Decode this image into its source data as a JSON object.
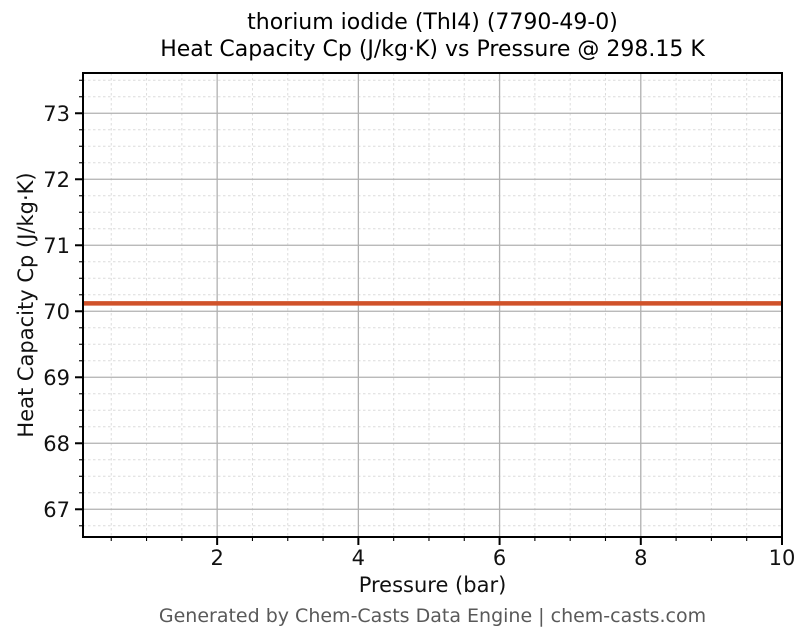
{
  "figure": {
    "background": "#ffffff",
    "footer": "Generated by Chem-Casts Data Engine | chem-casts.com",
    "footer_color": "#595959"
  },
  "chart_data": {
    "type": "line",
    "title": "thorium iodide (ThI4) (7790-49-0)",
    "subtitle": "Heat Capacity Cp (J/kg·K) vs Pressure @ 298.15 K",
    "xlabel": "Pressure (bar)",
    "ylabel": "Heat Capacity Cp (J/kg·K)",
    "xlim": [
      0.1,
      10
    ],
    "ylim": [
      66.58,
      73.61
    ],
    "x_major_ticks": [
      2,
      4,
      6,
      8,
      10
    ],
    "y_major_ticks": [
      67,
      68,
      69,
      70,
      71,
      72,
      73
    ],
    "x_minor_step": 0.5,
    "y_minor_step": 0.25,
    "grid": {
      "major_style": "solid",
      "minor_style": "dashed",
      "major_color": "#b0b0b0",
      "minor_color": "#dcdcdc"
    },
    "legend": "none",
    "axis_color": "#000000",
    "tick_label_color": "#111111",
    "series": [
      {
        "name": "Heat Capacity Cp",
        "color": "#d0522a",
        "line_width": 4.5,
        "x": [
          0.1,
          1,
          2,
          3,
          4,
          5,
          6,
          7,
          8,
          9,
          10
        ],
        "y": [
          70.12,
          70.12,
          70.12,
          70.12,
          70.12,
          70.12,
          70.12,
          70.12,
          70.12,
          70.12,
          70.12
        ]
      }
    ]
  }
}
